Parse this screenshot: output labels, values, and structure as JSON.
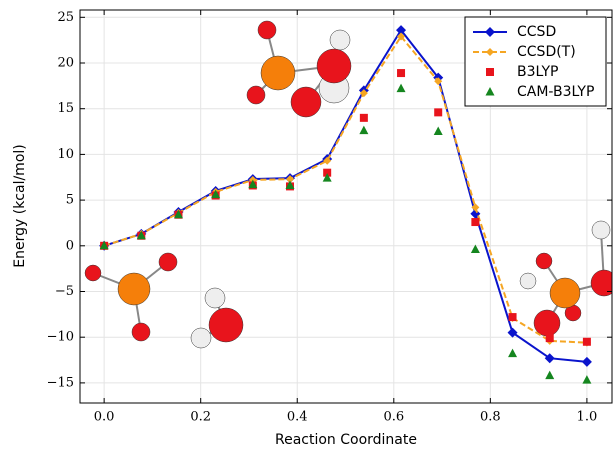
{
  "chart_data": {
    "type": "line",
    "xlabel": "Reaction Coordinate",
    "ylabel": "Energy (kcal/mol)",
    "x": [
      0,
      0.077,
      0.154,
      0.231,
      0.308,
      0.385,
      0.462,
      0.538,
      0.615,
      0.692,
      0.769,
      0.846,
      0.923,
      1.0
    ],
    "series": [
      {
        "name": "CCSD",
        "color": "#0a14cc",
        "line": true,
        "dash": false,
        "marker": "diamond",
        "values": [
          0,
          1.3,
          3.7,
          6.0,
          7.3,
          7.4,
          9.5,
          17.0,
          23.6,
          18.4,
          3.5,
          -9.5,
          -12.3,
          -12.7
        ]
      },
      {
        "name": "CCSD(T)",
        "color": "#f5a623",
        "line": true,
        "dash": true,
        "marker": "small-diamond",
        "values": [
          0,
          1.3,
          3.6,
          5.9,
          7.2,
          7.3,
          9.3,
          16.7,
          22.9,
          18.0,
          4.2,
          -7.9,
          -10.4,
          -10.6
        ]
      },
      {
        "name": "B3LYP",
        "color": "#e8141c",
        "line": false,
        "dash": false,
        "marker": "square",
        "values": [
          0,
          1.1,
          3.4,
          5.5,
          6.6,
          6.5,
          8.0,
          14.0,
          18.9,
          14.6,
          2.6,
          -7.8,
          -10.1,
          -10.5
        ]
      },
      {
        "name": "CAM-B3LYP",
        "color": "#15861f",
        "line": false,
        "dash": false,
        "marker": "triangle",
        "values": [
          0,
          1.1,
          3.4,
          5.6,
          6.7,
          6.6,
          7.4,
          12.6,
          17.2,
          12.5,
          -0.4,
          -11.8,
          -14.2,
          -14.7
        ]
      }
    ],
    "xlim": [
      -0.05,
      1.052
    ],
    "ylim": [
      -17.2,
      25.8
    ],
    "xticks": [
      {
        "value": 0,
        "label": "0.0"
      },
      0.2,
      0.4,
      0.6,
      0.8,
      {
        "value": 1,
        "label": "1.0"
      }
    ],
    "yticks": [
      {
        "value": -15,
        "label": "−15"
      },
      {
        "value": -10,
        "label": "−10"
      },
      {
        "value": -5,
        "label": "−5"
      },
      0,
      5,
      10,
      15,
      20,
      25
    ],
    "grid": true,
    "legend": "upper right"
  }
}
